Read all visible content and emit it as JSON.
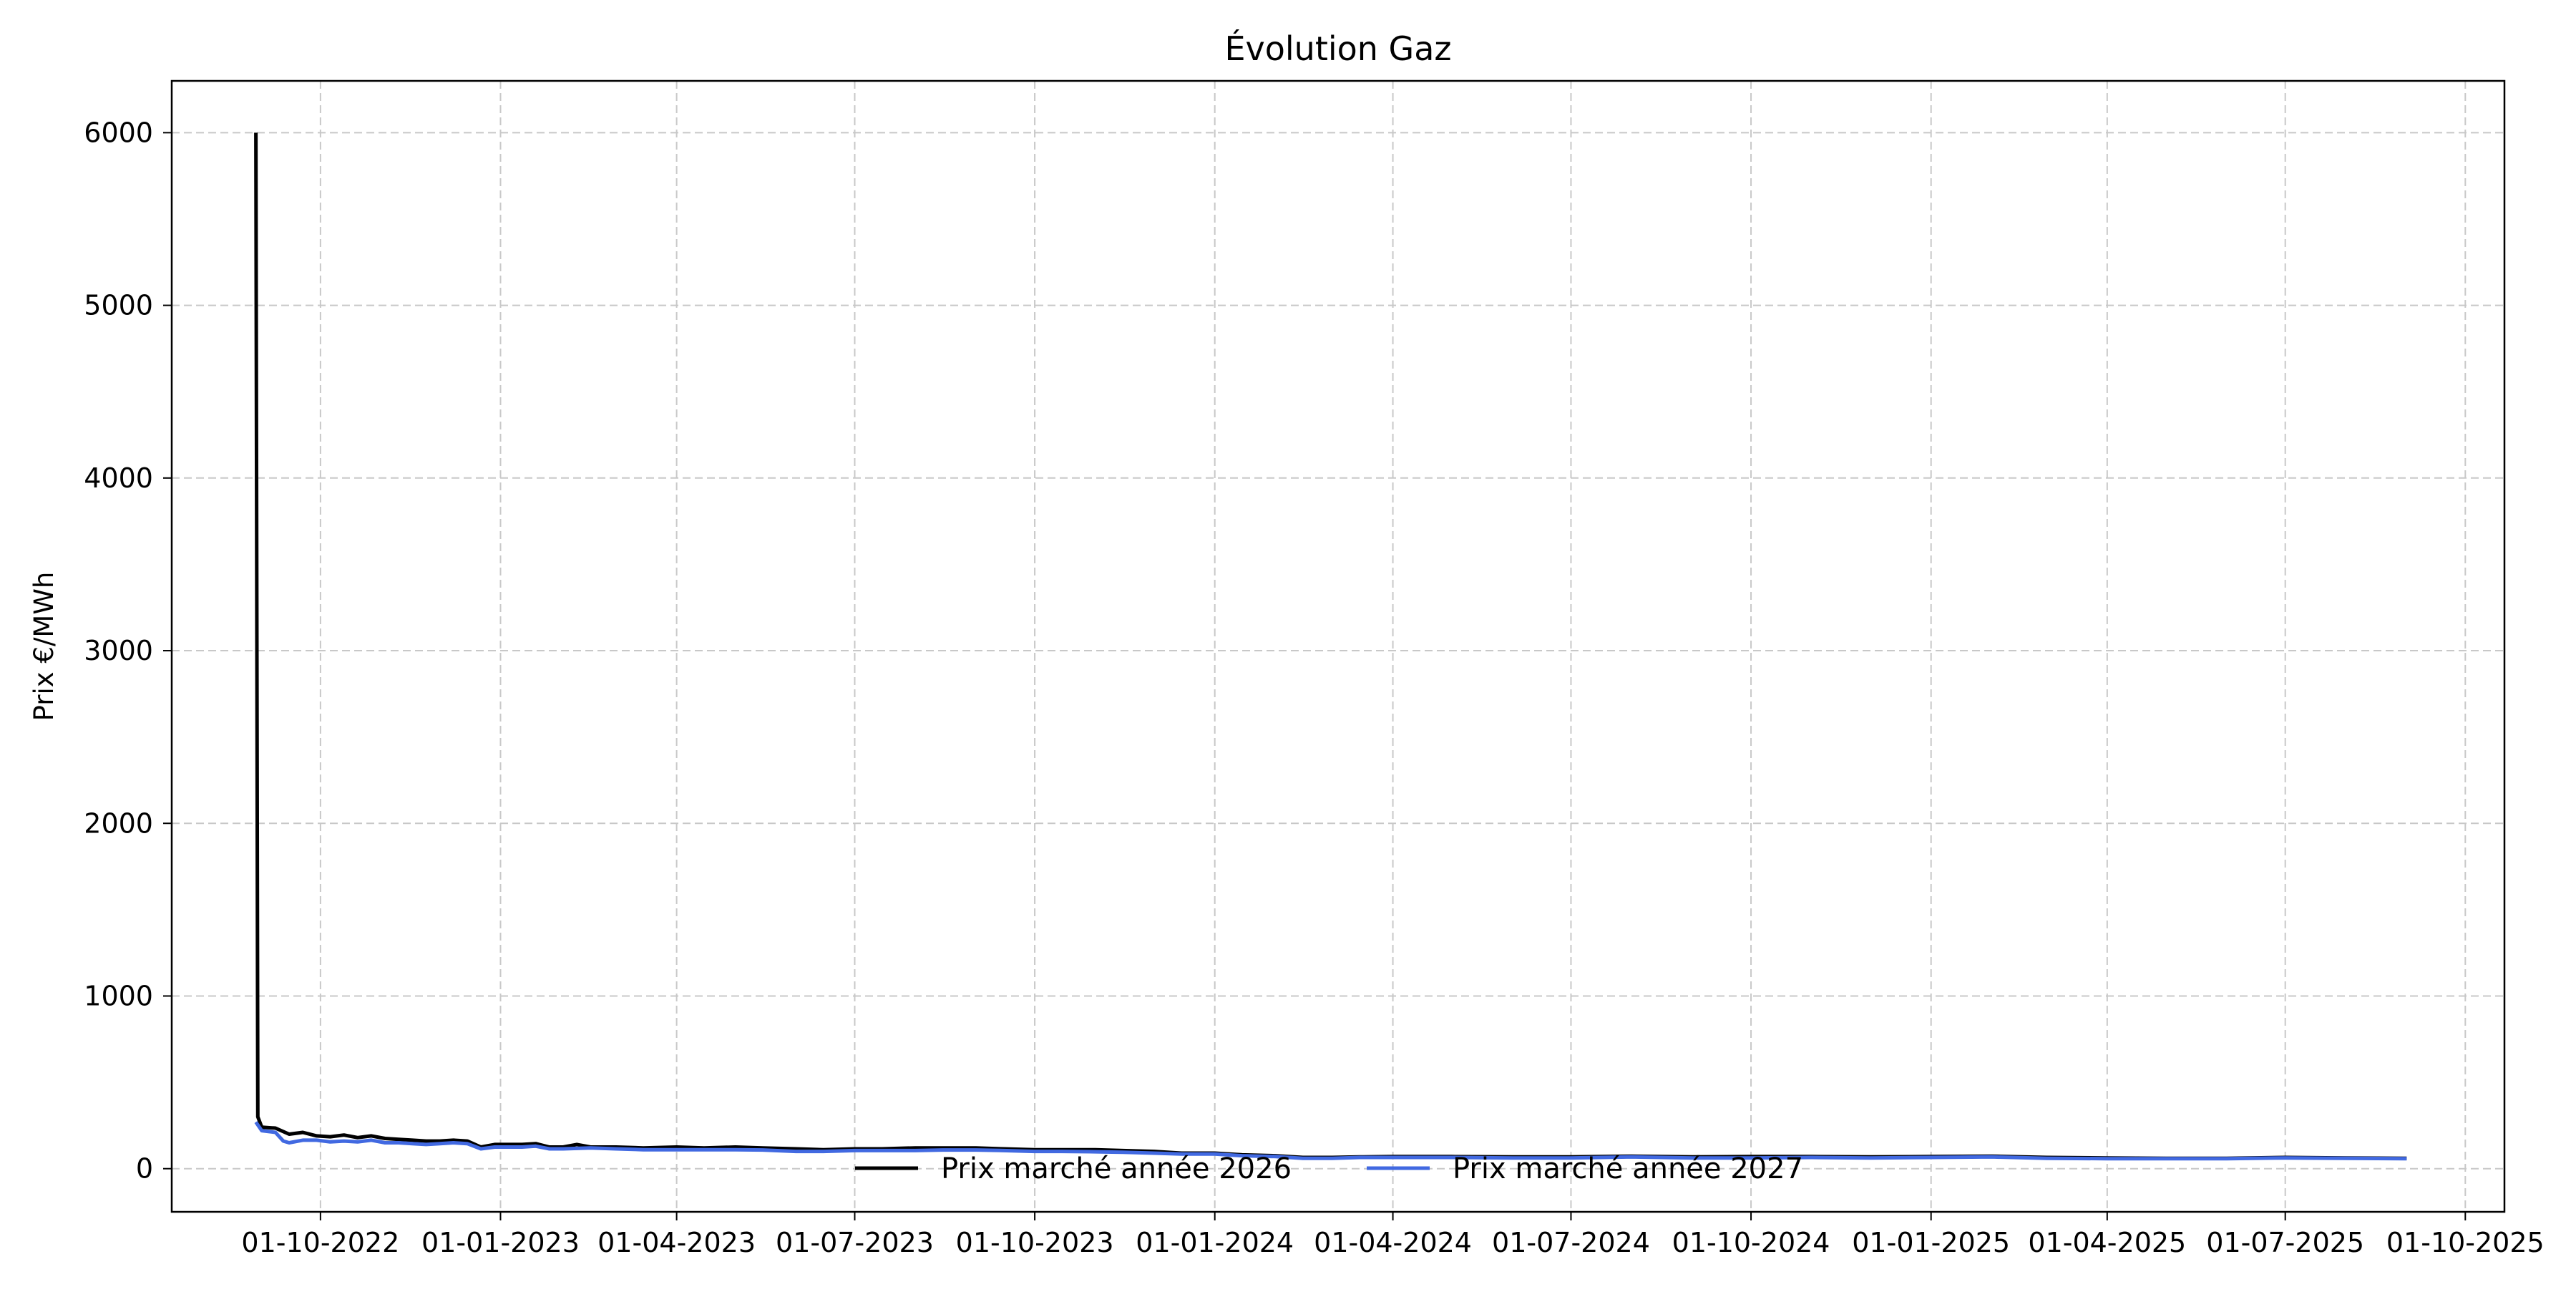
{
  "chart_data": {
    "type": "line",
    "title": "Évolution Gaz",
    "xlabel": "",
    "ylabel": "Prix €/MWh",
    "x_type": "date",
    "xlim": [
      "2022-07-17",
      "2025-10-21"
    ],
    "ylim": [
      -250,
      6300
    ],
    "x_ticks": [
      "2022-10-01",
      "2023-01-01",
      "2023-04-01",
      "2023-07-01",
      "2023-10-01",
      "2024-01-01",
      "2024-04-01",
      "2024-07-01",
      "2024-10-01",
      "2025-01-01",
      "2025-04-01",
      "2025-07-01",
      "2025-10-01"
    ],
    "x_tick_labels": [
      "01-10-2022",
      "01-01-2023",
      "01-04-2023",
      "01-07-2023",
      "01-10-2023",
      "01-01-2024",
      "01-04-2024",
      "01-07-2024",
      "01-10-2024",
      "01-01-2025",
      "01-04-2025",
      "01-07-2025",
      "01-10-2025"
    ],
    "y_ticks": [
      0,
      1000,
      2000,
      3000,
      4000,
      5000,
      6000
    ],
    "grid": true,
    "legend": "bottom-center",
    "series": [
      {
        "name": "Prix marché année 2026",
        "color": "#000000",
        "points": [
          [
            "2022-08-29",
            6000
          ],
          [
            "2022-08-30",
            300
          ],
          [
            "2022-09-01",
            240
          ],
          [
            "2022-09-08",
            235
          ],
          [
            "2022-09-15",
            200
          ],
          [
            "2022-09-22",
            210
          ],
          [
            "2022-09-29",
            190
          ],
          [
            "2022-10-06",
            185
          ],
          [
            "2022-10-13",
            195
          ],
          [
            "2022-10-20",
            180
          ],
          [
            "2022-10-27",
            190
          ],
          [
            "2022-11-03",
            175
          ],
          [
            "2022-11-10",
            170
          ],
          [
            "2022-11-17",
            165
          ],
          [
            "2022-11-24",
            160
          ],
          [
            "2022-12-01",
            160
          ],
          [
            "2022-12-08",
            165
          ],
          [
            "2022-12-15",
            160
          ],
          [
            "2022-12-22",
            125
          ],
          [
            "2022-12-29",
            140
          ],
          [
            "2023-01-05",
            140
          ],
          [
            "2023-01-12",
            140
          ],
          [
            "2023-01-19",
            145
          ],
          [
            "2023-01-26",
            125
          ],
          [
            "2023-02-02",
            125
          ],
          [
            "2023-02-09",
            140
          ],
          [
            "2023-02-16",
            125
          ],
          [
            "2023-03-01",
            125
          ],
          [
            "2023-03-15",
            120
          ],
          [
            "2023-04-01",
            125
          ],
          [
            "2023-04-15",
            120
          ],
          [
            "2023-05-01",
            125
          ],
          [
            "2023-05-15",
            120
          ],
          [
            "2023-06-01",
            115
          ],
          [
            "2023-06-15",
            110
          ],
          [
            "2023-07-01",
            115
          ],
          [
            "2023-07-15",
            115
          ],
          [
            "2023-08-01",
            120
          ],
          [
            "2023-08-15",
            120
          ],
          [
            "2023-09-01",
            120
          ],
          [
            "2023-09-15",
            115
          ],
          [
            "2023-10-01",
            110
          ],
          [
            "2023-10-15",
            110
          ],
          [
            "2023-11-01",
            110
          ],
          [
            "2023-11-15",
            105
          ],
          [
            "2023-12-01",
            100
          ],
          [
            "2023-12-15",
            90
          ],
          [
            "2024-01-01",
            90
          ],
          [
            "2024-01-15",
            80
          ],
          [
            "2024-02-01",
            75
          ],
          [
            "2024-02-15",
            65
          ],
          [
            "2024-03-01",
            65
          ],
          [
            "2024-03-15",
            68
          ],
          [
            "2024-04-01",
            70
          ],
          [
            "2024-05-01",
            70
          ],
          [
            "2024-06-01",
            68
          ],
          [
            "2024-07-01",
            68
          ],
          [
            "2024-08-01",
            72
          ],
          [
            "2024-09-01",
            68
          ],
          [
            "2024-10-01",
            70
          ],
          [
            "2024-11-01",
            70
          ],
          [
            "2024-12-01",
            68
          ],
          [
            "2025-01-01",
            70
          ],
          [
            "2025-02-01",
            72
          ],
          [
            "2025-03-01",
            65
          ],
          [
            "2025-04-01",
            62
          ],
          [
            "2025-05-01",
            60
          ],
          [
            "2025-06-01",
            60
          ],
          [
            "2025-07-01",
            65
          ],
          [
            "2025-08-01",
            62
          ],
          [
            "2025-09-01",
            60
          ]
        ]
      },
      {
        "name": "Prix marché année 2027",
        "color": "#4169e1",
        "points": [
          [
            "2022-08-29",
            270
          ],
          [
            "2022-09-01",
            220
          ],
          [
            "2022-09-08",
            210
          ],
          [
            "2022-09-12",
            160
          ],
          [
            "2022-09-15",
            150
          ],
          [
            "2022-09-22",
            165
          ],
          [
            "2022-09-29",
            165
          ],
          [
            "2022-10-06",
            155
          ],
          [
            "2022-10-13",
            160
          ],
          [
            "2022-10-20",
            155
          ],
          [
            "2022-10-27",
            165
          ],
          [
            "2022-11-03",
            150
          ],
          [
            "2022-11-10",
            150
          ],
          [
            "2022-11-17",
            145
          ],
          [
            "2022-11-24",
            140
          ],
          [
            "2022-12-01",
            145
          ],
          [
            "2022-12-08",
            150
          ],
          [
            "2022-12-15",
            145
          ],
          [
            "2022-12-22",
            115
          ],
          [
            "2022-12-29",
            125
          ],
          [
            "2023-01-05",
            125
          ],
          [
            "2023-01-12",
            125
          ],
          [
            "2023-01-19",
            130
          ],
          [
            "2023-01-26",
            115
          ],
          [
            "2023-02-02",
            115
          ],
          [
            "2023-02-16",
            120
          ],
          [
            "2023-03-01",
            115
          ],
          [
            "2023-03-15",
            110
          ],
          [
            "2023-04-01",
            110
          ],
          [
            "2023-04-15",
            110
          ],
          [
            "2023-05-01",
            110
          ],
          [
            "2023-05-15",
            108
          ],
          [
            "2023-06-01",
            100
          ],
          [
            "2023-06-15",
            100
          ],
          [
            "2023-07-01",
            105
          ],
          [
            "2023-07-15",
            105
          ],
          [
            "2023-08-01",
            105
          ],
          [
            "2023-08-15",
            108
          ],
          [
            "2023-09-01",
            108
          ],
          [
            "2023-09-15",
            105
          ],
          [
            "2023-10-01",
            100
          ],
          [
            "2023-10-15",
            100
          ],
          [
            "2023-11-01",
            98
          ],
          [
            "2023-11-15",
            95
          ],
          [
            "2023-12-01",
            90
          ],
          [
            "2023-12-15",
            85
          ],
          [
            "2024-01-01",
            85
          ],
          [
            "2024-01-15",
            75
          ],
          [
            "2024-02-01",
            70
          ],
          [
            "2024-02-15",
            60
          ],
          [
            "2024-03-01",
            60
          ],
          [
            "2024-03-15",
            65
          ],
          [
            "2024-04-01",
            65
          ],
          [
            "2024-05-01",
            65
          ],
          [
            "2024-06-01",
            62
          ],
          [
            "2024-07-01",
            62
          ],
          [
            "2024-08-01",
            68
          ],
          [
            "2024-09-01",
            62
          ],
          [
            "2024-10-01",
            62
          ],
          [
            "2024-11-01",
            65
          ],
          [
            "2024-12-01",
            62
          ],
          [
            "2025-01-01",
            65
          ],
          [
            "2025-02-01",
            68
          ],
          [
            "2025-03-01",
            60
          ],
          [
            "2025-04-01",
            58
          ],
          [
            "2025-05-01",
            58
          ],
          [
            "2025-06-01",
            58
          ],
          [
            "2025-07-01",
            62
          ],
          [
            "2025-08-01",
            60
          ],
          [
            "2025-09-01",
            58
          ]
        ]
      }
    ]
  }
}
